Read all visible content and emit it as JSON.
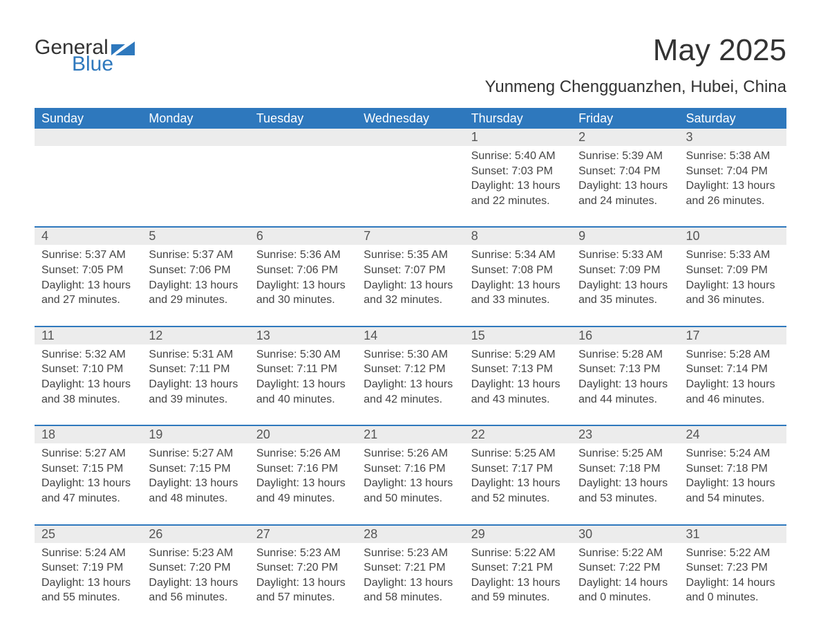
{
  "brand": {
    "word1": "General",
    "word2": "Blue",
    "flag_color": "#2e78bd"
  },
  "title": "May 2025",
  "subtitle": "Yunmeng Chengguanzhen, Hubei, China",
  "header_bg": "#2e78bd",
  "header_fg": "#ffffff",
  "daynum_bg": "#ececec",
  "border_color": "#2e78bd",
  "text_color": "#3a3a3a",
  "day_headers": [
    "Sunday",
    "Monday",
    "Tuesday",
    "Wednesday",
    "Thursday",
    "Friday",
    "Saturday"
  ],
  "weeks": [
    [
      null,
      null,
      null,
      null,
      {
        "n": "1",
        "sunrise": "5:40 AM",
        "sunset": "7:03 PM",
        "dl": "13 hours and 22 minutes."
      },
      {
        "n": "2",
        "sunrise": "5:39 AM",
        "sunset": "7:04 PM",
        "dl": "13 hours and 24 minutes."
      },
      {
        "n": "3",
        "sunrise": "5:38 AM",
        "sunset": "7:04 PM",
        "dl": "13 hours and 26 minutes."
      }
    ],
    [
      {
        "n": "4",
        "sunrise": "5:37 AM",
        "sunset": "7:05 PM",
        "dl": "13 hours and 27 minutes."
      },
      {
        "n": "5",
        "sunrise": "5:37 AM",
        "sunset": "7:06 PM",
        "dl": "13 hours and 29 minutes."
      },
      {
        "n": "6",
        "sunrise": "5:36 AM",
        "sunset": "7:06 PM",
        "dl": "13 hours and 30 minutes."
      },
      {
        "n": "7",
        "sunrise": "5:35 AM",
        "sunset": "7:07 PM",
        "dl": "13 hours and 32 minutes."
      },
      {
        "n": "8",
        "sunrise": "5:34 AM",
        "sunset": "7:08 PM",
        "dl": "13 hours and 33 minutes."
      },
      {
        "n": "9",
        "sunrise": "5:33 AM",
        "sunset": "7:09 PM",
        "dl": "13 hours and 35 minutes."
      },
      {
        "n": "10",
        "sunrise": "5:33 AM",
        "sunset": "7:09 PM",
        "dl": "13 hours and 36 minutes."
      }
    ],
    [
      {
        "n": "11",
        "sunrise": "5:32 AM",
        "sunset": "7:10 PM",
        "dl": "13 hours and 38 minutes."
      },
      {
        "n": "12",
        "sunrise": "5:31 AM",
        "sunset": "7:11 PM",
        "dl": "13 hours and 39 minutes."
      },
      {
        "n": "13",
        "sunrise": "5:30 AM",
        "sunset": "7:11 PM",
        "dl": "13 hours and 40 minutes."
      },
      {
        "n": "14",
        "sunrise": "5:30 AM",
        "sunset": "7:12 PM",
        "dl": "13 hours and 42 minutes."
      },
      {
        "n": "15",
        "sunrise": "5:29 AM",
        "sunset": "7:13 PM",
        "dl": "13 hours and 43 minutes."
      },
      {
        "n": "16",
        "sunrise": "5:28 AM",
        "sunset": "7:13 PM",
        "dl": "13 hours and 44 minutes."
      },
      {
        "n": "17",
        "sunrise": "5:28 AM",
        "sunset": "7:14 PM",
        "dl": "13 hours and 46 minutes."
      }
    ],
    [
      {
        "n": "18",
        "sunrise": "5:27 AM",
        "sunset": "7:15 PM",
        "dl": "13 hours and 47 minutes."
      },
      {
        "n": "19",
        "sunrise": "5:27 AM",
        "sunset": "7:15 PM",
        "dl": "13 hours and 48 minutes."
      },
      {
        "n": "20",
        "sunrise": "5:26 AM",
        "sunset": "7:16 PM",
        "dl": "13 hours and 49 minutes."
      },
      {
        "n": "21",
        "sunrise": "5:26 AM",
        "sunset": "7:16 PM",
        "dl": "13 hours and 50 minutes."
      },
      {
        "n": "22",
        "sunrise": "5:25 AM",
        "sunset": "7:17 PM",
        "dl": "13 hours and 52 minutes."
      },
      {
        "n": "23",
        "sunrise": "5:25 AM",
        "sunset": "7:18 PM",
        "dl": "13 hours and 53 minutes."
      },
      {
        "n": "24",
        "sunrise": "5:24 AM",
        "sunset": "7:18 PM",
        "dl": "13 hours and 54 minutes."
      }
    ],
    [
      {
        "n": "25",
        "sunrise": "5:24 AM",
        "sunset": "7:19 PM",
        "dl": "13 hours and 55 minutes."
      },
      {
        "n": "26",
        "sunrise": "5:23 AM",
        "sunset": "7:20 PM",
        "dl": "13 hours and 56 minutes."
      },
      {
        "n": "27",
        "sunrise": "5:23 AM",
        "sunset": "7:20 PM",
        "dl": "13 hours and 57 minutes."
      },
      {
        "n": "28",
        "sunrise": "5:23 AM",
        "sunset": "7:21 PM",
        "dl": "13 hours and 58 minutes."
      },
      {
        "n": "29",
        "sunrise": "5:22 AM",
        "sunset": "7:21 PM",
        "dl": "13 hours and 59 minutes."
      },
      {
        "n": "30",
        "sunrise": "5:22 AM",
        "sunset": "7:22 PM",
        "dl": "14 hours and 0 minutes."
      },
      {
        "n": "31",
        "sunrise": "5:22 AM",
        "sunset": "7:23 PM",
        "dl": "14 hours and 0 minutes."
      }
    ]
  ],
  "labels": {
    "sunrise": "Sunrise: ",
    "sunset": "Sunset: ",
    "daylight": "Daylight: "
  }
}
